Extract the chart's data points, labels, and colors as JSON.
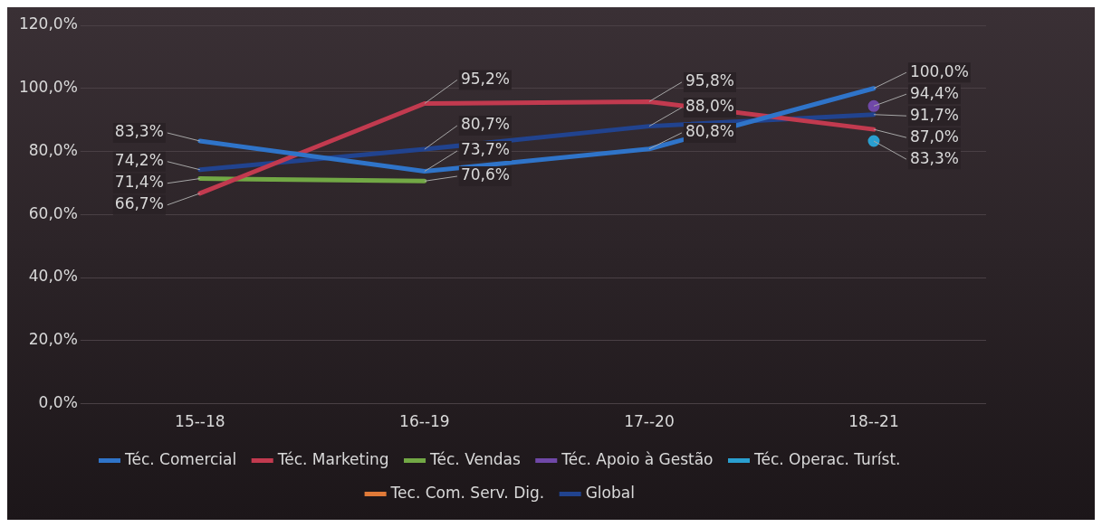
{
  "chart_data": {
    "type": "line",
    "categories": [
      "15--18",
      "16--19",
      "17--20",
      "18--21"
    ],
    "series": [
      {
        "name": "Téc. Comercial",
        "color": "#2f74c9",
        "values": [
          83.3,
          73.7,
          80.8,
          100.0
        ],
        "value_labels": [
          "83,3%",
          "73,7%",
          "80,8%",
          "100,0%"
        ]
      },
      {
        "name": "Téc. Marketing",
        "color": "#c23a4f",
        "values": [
          66.7,
          95.2,
          95.8,
          87.0
        ],
        "value_labels": [
          "66,7%",
          "95,2%",
          "95,8%",
          "87,0%"
        ]
      },
      {
        "name": "Téc. Vendas",
        "color": "#72a845",
        "values": [
          71.4,
          70.6,
          null,
          null
        ],
        "value_labels": [
          "71,4%",
          "70,6%",
          null,
          null
        ]
      },
      {
        "name": "Téc. Apoio à Gestão",
        "color": "#7048a8",
        "marker": "circle",
        "values": [
          null,
          null,
          null,
          94.4
        ],
        "value_labels": [
          null,
          null,
          null,
          "94,4%"
        ]
      },
      {
        "name": "Téc. Operac. Turíst.",
        "color": "#2a9fd0",
        "marker": "circle",
        "values": [
          null,
          null,
          null,
          83.3
        ],
        "value_labels": [
          null,
          null,
          null,
          "83,3%"
        ]
      },
      {
        "name": "Tec. Com. Serv. Dig.",
        "color": "#e07a38",
        "values": [
          null,
          null,
          null,
          null
        ]
      },
      {
        "name": "Global",
        "color": "#21438f",
        "values": [
          74.2,
          80.7,
          88.0,
          91.7
        ],
        "value_labels": [
          "74,2%",
          "80,7%",
          "88,0%",
          "91,7%"
        ]
      }
    ],
    "ylim": [
      0,
      120
    ],
    "yticks": [
      {
        "value": 0,
        "label": "0,0%"
      },
      {
        "value": 20,
        "label": "20,0%"
      },
      {
        "value": 40,
        "label": "40,0%"
      },
      {
        "value": 60,
        "label": "60,0%"
      },
      {
        "value": 80,
        "label": "80,0%"
      },
      {
        "value": 100,
        "label": "100,0%"
      },
      {
        "value": 120,
        "label": "120,0%"
      }
    ],
    "grid": "y",
    "legend": "bottom",
    "marker": "none",
    "line_style": "solid"
  }
}
